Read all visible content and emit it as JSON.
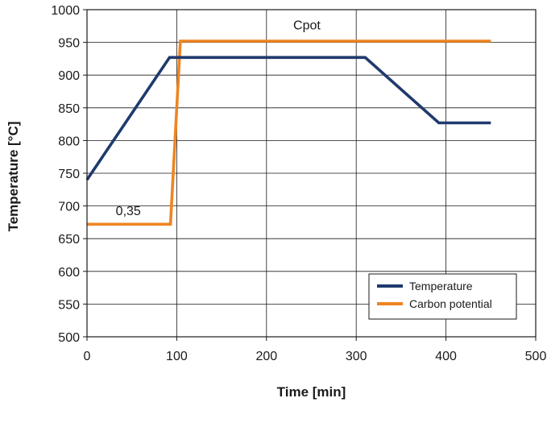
{
  "chart_data": {
    "type": "line",
    "title": "",
    "xlabel": "Time [min]",
    "ylabel": "Temperature [°C]",
    "xlim": [
      0,
      500
    ],
    "ylim": [
      500,
      1000
    ],
    "xticks": [
      0,
      100,
      200,
      300,
      400,
      500
    ],
    "yticks": [
      500,
      550,
      600,
      650,
      700,
      750,
      800,
      850,
      900,
      950,
      1000
    ],
    "grid": true,
    "legend_position": "bottom-right",
    "series": [
      {
        "name": "Temperature",
        "color": "#1f3a6e",
        "points": [
          [
            0,
            740
          ],
          [
            92,
            927
          ],
          [
            310,
            927
          ],
          [
            392,
            827
          ],
          [
            450,
            827
          ]
        ]
      },
      {
        "name": "Carbon potential",
        "color": "#ee8522",
        "points": [
          [
            0,
            672
          ],
          [
            93,
            672
          ],
          [
            104,
            952
          ],
          [
            450,
            952
          ]
        ]
      }
    ],
    "annotations": [
      {
        "text": "Cpot",
        "x": 245,
        "y": 970
      },
      {
        "text": "0,35",
        "x": 46,
        "y": 686
      }
    ]
  }
}
